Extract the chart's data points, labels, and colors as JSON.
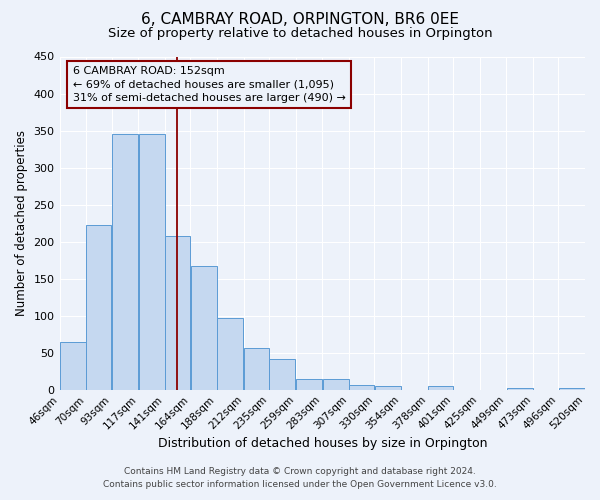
{
  "title": "6, CAMBRAY ROAD, ORPINGTON, BR6 0EE",
  "subtitle": "Size of property relative to detached houses in Orpington",
  "xlabel": "Distribution of detached houses by size in Orpington",
  "ylabel": "Number of detached properties",
  "bar_left_edges": [
    46,
    70,
    93,
    117,
    141,
    164,
    188,
    212,
    235,
    259,
    283,
    307,
    330,
    354,
    378,
    401,
    425,
    449,
    473,
    496
  ],
  "bar_widths": [
    24,
    23,
    24,
    24,
    23,
    24,
    24,
    23,
    24,
    24,
    24,
    23,
    24,
    24,
    23,
    24,
    24,
    24,
    23,
    24
  ],
  "bar_heights": [
    65,
    222,
    345,
    345,
    208,
    167,
    97,
    57,
    42,
    15,
    15,
    7,
    5,
    0,
    5,
    0,
    0,
    3,
    0,
    3
  ],
  "bar_color": "#c5d8f0",
  "bar_edge_color": "#5b9bd5",
  "property_size": 152,
  "vline_color": "#8b0000",
  "annotation_box_color": "#8b0000",
  "annotation_text": "6 CAMBRAY ROAD: 152sqm\n← 69% of detached houses are smaller (1,095)\n31% of semi-detached houses are larger (490) →",
  "tick_labels": [
    "46sqm",
    "70sqm",
    "93sqm",
    "117sqm",
    "141sqm",
    "164sqm",
    "188sqm",
    "212sqm",
    "235sqm",
    "259sqm",
    "283sqm",
    "307sqm",
    "330sqm",
    "354sqm",
    "378sqm",
    "401sqm",
    "425sqm",
    "449sqm",
    "473sqm",
    "496sqm",
    "520sqm"
  ],
  "ylim": [
    0,
    450
  ],
  "yticks": [
    0,
    50,
    100,
    150,
    200,
    250,
    300,
    350,
    400,
    450
  ],
  "footnote1": "Contains HM Land Registry data © Crown copyright and database right 2024.",
  "footnote2": "Contains public sector information licensed under the Open Government Licence v3.0.",
  "background_color": "#edf2fa",
  "grid_color": "#ffffff",
  "title_fontsize": 11,
  "subtitle_fontsize": 9.5,
  "xlabel_fontsize": 9,
  "ylabel_fontsize": 8.5,
  "tick_fontsize": 7.5,
  "annotation_fontsize": 8,
  "footnote_fontsize": 6.5
}
